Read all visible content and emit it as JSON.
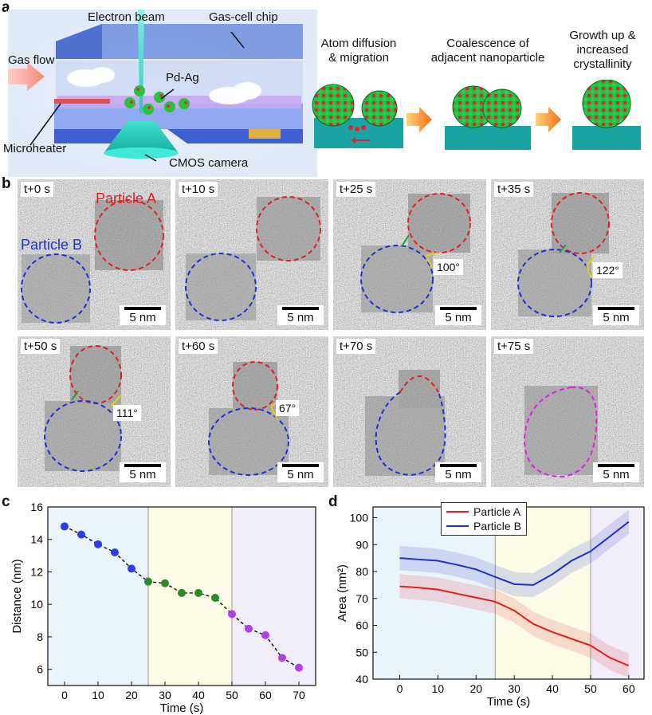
{
  "panel_labels": {
    "a": "a",
    "b": "b",
    "c": "c",
    "d": "d"
  },
  "panel_a": {
    "electron_beam": "Electron beam",
    "gas_cell_chip": "Gas-cell chip",
    "gas_flow": "Gas flow",
    "pd_ag": "Pd-Ag",
    "microheater": "Microheater",
    "cmos_camera": "CMOS camera",
    "steps": [
      {
        "line1": "Atom diffusion",
        "line2": "& migration"
      },
      {
        "line1": "Coalescence of",
        "line2": "adjacent nanoparticle"
      },
      {
        "line1": "Growth up &",
        "line2": "increased",
        "line3": "crystallinity"
      }
    ]
  },
  "panel_b": {
    "scale_label": "5 nm",
    "particle_a_label": "Particle A",
    "particle_b_label": "Particle B",
    "colors": {
      "particle_a": "#e02020",
      "particle_b": "#2030d0",
      "merged": "#e020e0",
      "neck_left": "#20a040",
      "neck_right": "#e0d020"
    },
    "frames": [
      {
        "time": "t+0 s"
      },
      {
        "time": "t+10 s"
      },
      {
        "time": "t+25 s",
        "angle": "100°"
      },
      {
        "time": "t+35 s",
        "angle": "122°"
      },
      {
        "time": "t+50 s",
        "angle": "111°"
      },
      {
        "time": "t+60 s",
        "angle": "67°"
      },
      {
        "time": "t+70 s"
      },
      {
        "time": "t+75 s"
      }
    ]
  },
  "chart_data": [
    {
      "type": "scatter",
      "xlabel": "Time (s)",
      "ylabel": "Distance (nm)",
      "xlim": [
        -5,
        75
      ],
      "ylim": [
        5,
        16
      ],
      "xticks": [
        0,
        10,
        20,
        30,
        40,
        50,
        60,
        70
      ],
      "yticks": [
        6,
        8,
        10,
        12,
        14,
        16
      ],
      "stage_bounds": [
        25,
        50
      ],
      "stage_colors": [
        "#eaf4fb",
        "#fbfbe8",
        "#f1eefa"
      ],
      "point_colors": [
        "#2f3ce0",
        "#2a8a2a",
        "#b040e8"
      ],
      "x": [
        0,
        5,
        10,
        15,
        20,
        25,
        30,
        35,
        40,
        45,
        50,
        55,
        60,
        65,
        70
      ],
      "y": [
        14.8,
        14.3,
        13.7,
        13.2,
        12.2,
        11.4,
        11.3,
        10.7,
        10.7,
        10.4,
        9.4,
        8.5,
        8.1,
        6.7,
        6.1
      ],
      "stage": [
        0,
        0,
        0,
        0,
        0,
        1,
        1,
        1,
        1,
        1,
        2,
        2,
        2,
        2,
        2
      ]
    },
    {
      "type": "line",
      "xlabel": "Time (s)",
      "ylabel": "Area (nm²)",
      "xlim": [
        -7,
        64
      ],
      "ylim": [
        40,
        104
      ],
      "xticks": [
        0,
        10,
        20,
        30,
        40,
        50,
        60
      ],
      "yticks": [
        40,
        50,
        60,
        70,
        80,
        90,
        100
      ],
      "stage_bounds": [
        25,
        50
      ],
      "stage_colors": [
        "#eaf4fb",
        "#fbfbe8",
        "#f1eefa"
      ],
      "legend_position": "top-center",
      "series": [
        {
          "name": "Particle A",
          "color": "#e02020",
          "x": [
            0,
            5,
            10,
            15,
            20,
            25,
            30,
            35,
            40,
            45,
            50,
            55,
            60
          ],
          "y": [
            74.5,
            74.0,
            73.3,
            71.8,
            70.3,
            68.8,
            65.5,
            60.5,
            57.5,
            55.0,
            52.5,
            48.0,
            45.0
          ],
          "band": 4.5
        },
        {
          "name": "Particle B",
          "color": "#1f2fc8",
          "x": [
            0,
            5,
            10,
            15,
            20,
            25,
            30,
            35,
            40,
            45,
            50,
            55,
            60
          ],
          "y": [
            85.0,
            84.5,
            84.0,
            82.5,
            80.8,
            78.0,
            75.3,
            75.0,
            79.0,
            84.0,
            87.5,
            93.0,
            98.5
          ],
          "band": 4.5
        }
      ]
    }
  ]
}
